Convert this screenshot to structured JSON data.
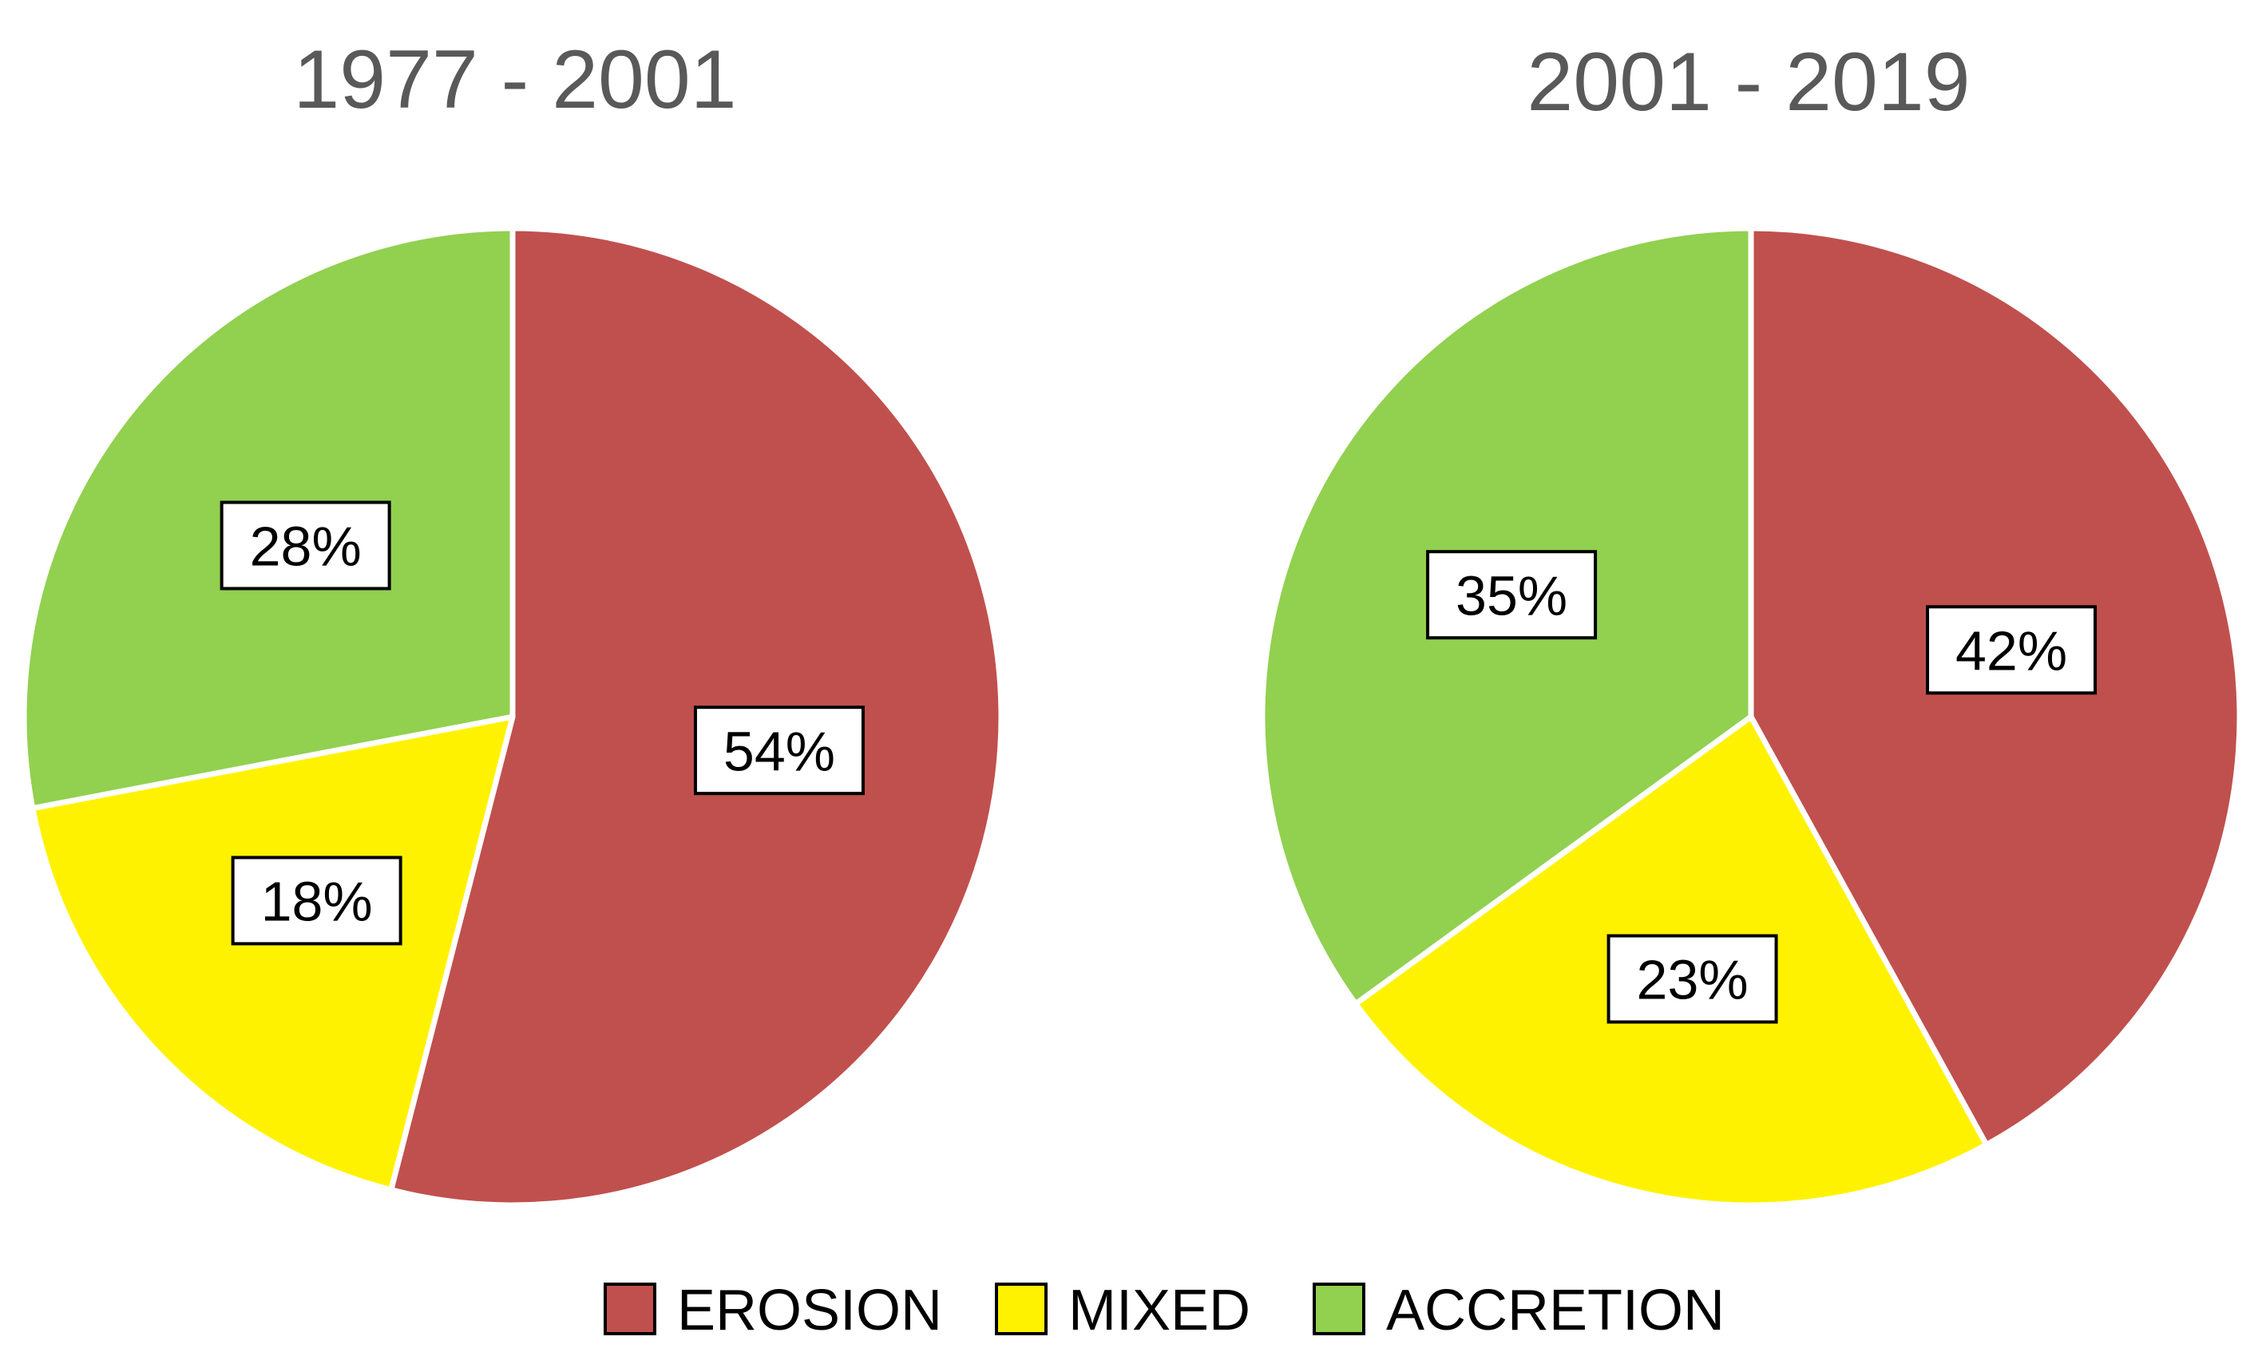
{
  "chart_data": [
    {
      "type": "pie",
      "title": "1977 - 2001",
      "categories": [
        "EROSION",
        "MIXED",
        "ACCRETION"
      ],
      "values": [
        54,
        18,
        28
      ],
      "labels": [
        "54%",
        "18%",
        "28%"
      ],
      "start": "12 o'clock",
      "direction": "clockwise"
    },
    {
      "type": "pie",
      "title": "2001 - 2019",
      "categories": [
        "EROSION",
        "MIXED",
        "ACCRETION"
      ],
      "values": [
        42,
        23,
        35
      ],
      "labels": [
        "42%",
        "23%",
        "35%"
      ],
      "start": "12 o'clock",
      "direction": "clockwise"
    }
  ],
  "legend": {
    "placement": "bottom",
    "items": [
      {
        "label": "EROSION",
        "color": "#C0504D"
      },
      {
        "label": "MIXED",
        "color": "#FFF200"
      },
      {
        "label": "ACCRETION",
        "color": "#92D050"
      }
    ]
  },
  "colors": {
    "EROSION": "#C0504D",
    "MIXED": "#FFF200",
    "ACCRETION": "#92D050",
    "title_text": "#595959",
    "label_text": "#000000",
    "separator": "#ffffff"
  }
}
